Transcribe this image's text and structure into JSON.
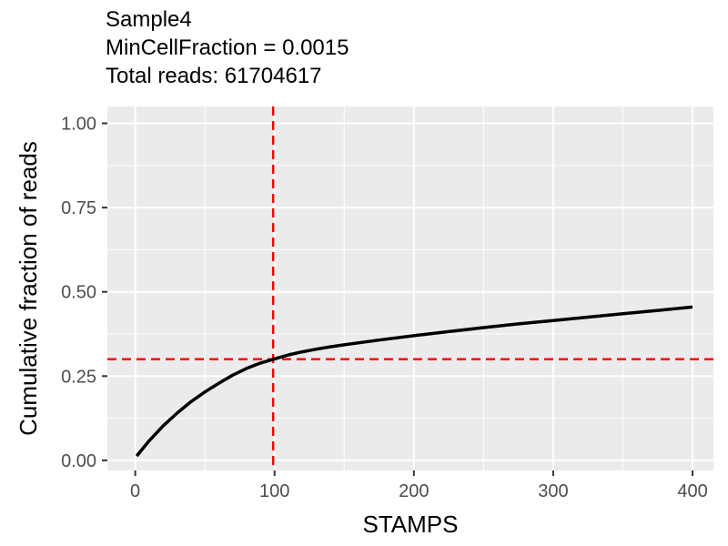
{
  "chart_data": {
    "type": "line",
    "title_lines": [
      "Sample4",
      "MinCellFraction = 0.0015",
      "Total reads: 61704617"
    ],
    "xlabel": "STAMPS",
    "ylabel": "Cumulative fraction of reads",
    "xlim": [
      -20,
      415
    ],
    "ylim": [
      -0.03,
      1.05
    ],
    "x_ticks": [
      0,
      100,
      200,
      300,
      400
    ],
    "x_tick_labels": [
      "0",
      "100",
      "200",
      "300",
      "400"
    ],
    "y_ticks": [
      0,
      0.25,
      0.5,
      0.75,
      1.0
    ],
    "y_tick_labels": [
      "0.00",
      "0.25",
      "0.50",
      "0.75",
      "1.00"
    ],
    "grid": true,
    "series": [
      {
        "color": "#000000",
        "x": [
          1,
          10,
          20,
          30,
          40,
          50,
          60,
          70,
          80,
          90,
          100,
          110,
          120,
          130,
          140,
          150,
          175,
          200,
          225,
          250,
          275,
          300,
          325,
          350,
          375,
          400
        ],
        "y": [
          0.013,
          0.058,
          0.102,
          0.14,
          0.174,
          0.203,
          0.229,
          0.253,
          0.273,
          0.289,
          0.301,
          0.313,
          0.322,
          0.33,
          0.337,
          0.343,
          0.357,
          0.37,
          0.382,
          0.394,
          0.405,
          0.415,
          0.425,
          0.435,
          0.445,
          0.455
        ]
      }
    ],
    "reference_lines": [
      {
        "orientation": "vertical",
        "value": 99,
        "color": "#ff0000",
        "style": "dashed"
      },
      {
        "orientation": "horizontal",
        "value": 0.3,
        "color": "#ff0000",
        "style": "dashed"
      }
    ],
    "colors": {
      "panel_background": "#ebebeb",
      "grid_line": "#ffffff",
      "axis_text": "#4d4d4d",
      "reference": "#ff0000",
      "series": "#000000"
    }
  }
}
